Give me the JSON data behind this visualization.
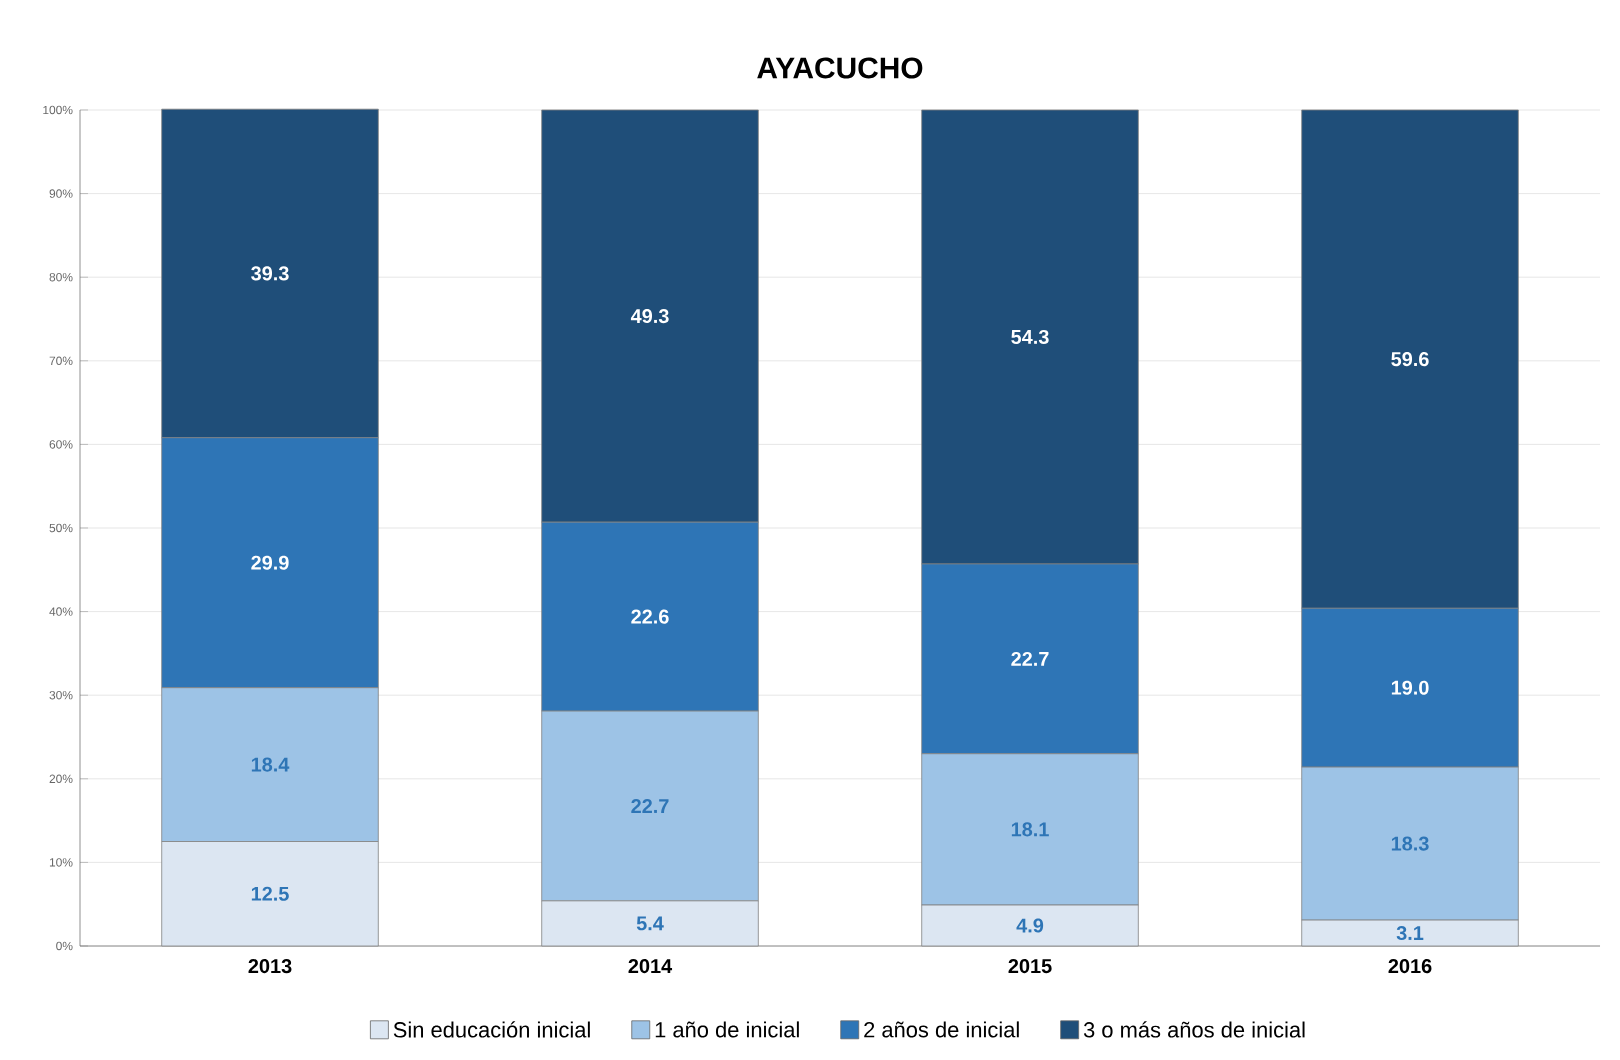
{
  "chart_data": {
    "type": "bar",
    "title": "AYACUCHO",
    "stacked": true,
    "categories": [
      "2013",
      "2014",
      "2015",
      "2016"
    ],
    "series": [
      {
        "name": "Sin educación inicial",
        "color": "#dce6f2",
        "values": [
          12.5,
          5.4,
          4.9,
          3.1
        ],
        "value_labels": [
          "12.5",
          "5.4",
          "4.9",
          "3.1"
        ]
      },
      {
        "name": "1 año de inicial",
        "color": "#9dc3e6",
        "values": [
          18.4,
          22.7,
          18.1,
          18.3
        ],
        "value_labels": [
          "18.4",
          "22.7",
          "18.1",
          "18.3"
        ]
      },
      {
        "name": "2 años de inicial",
        "color": "#2e75b6",
        "values": [
          29.9,
          22.6,
          22.7,
          19.0
        ],
        "value_labels": [
          "29.9",
          "22.6",
          "22.7",
          "19.0"
        ]
      },
      {
        "name": "3  o más años de inicial",
        "color": "#1f4e79",
        "values": [
          39.3,
          49.3,
          54.3,
          59.6
        ],
        "value_labels": [
          "39.3",
          "49.3",
          "54.3",
          "59.6"
        ]
      }
    ],
    "ylim": [
      0,
      100
    ],
    "yticks": [
      {
        "value": 0,
        "label": "0%"
      },
      {
        "value": 10,
        "label": "10%"
      },
      {
        "value": 20,
        "label": "20%"
      },
      {
        "value": 30,
        "label": "30%"
      },
      {
        "value": 40,
        "label": "40%"
      },
      {
        "value": 50,
        "label": "50%"
      },
      {
        "value": 60,
        "label": "60%"
      },
      {
        "value": 70,
        "label": "70%"
      },
      {
        "value": 80,
        "label": "80%"
      },
      {
        "value": 90,
        "label": "90%"
      },
      {
        "value": 100,
        "label": "100%"
      }
    ],
    "grid": "y",
    "legend": "bottom"
  }
}
